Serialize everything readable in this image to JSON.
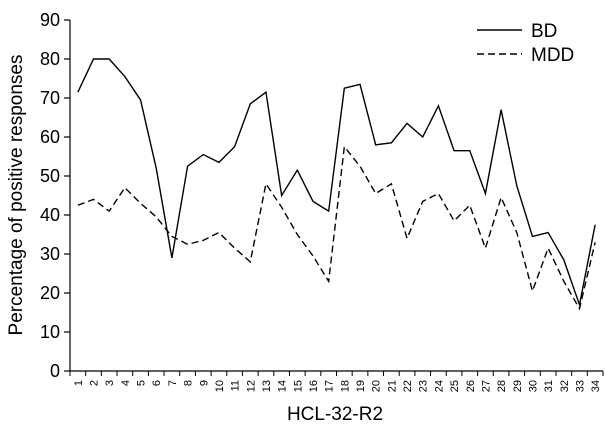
{
  "chart_data": {
    "type": "line",
    "xlabel": "HCL-32-R2",
    "ylabel": "Percentage of positive responses",
    "ylim": [
      0,
      90
    ],
    "yticks": [
      0,
      10,
      20,
      30,
      40,
      50,
      60,
      70,
      80,
      90
    ],
    "categories": [
      "1",
      "2",
      "3",
      "4",
      "5",
      "6",
      "7",
      "8",
      "9",
      "10",
      "11",
      "12",
      "13",
      "14",
      "15",
      "16",
      "17",
      "18",
      "19",
      "20",
      "21",
      "22",
      "23",
      "24",
      "25",
      "26",
      "27",
      "28",
      "29",
      "30",
      "31",
      "32",
      "33",
      "34"
    ],
    "legend_position": "top-right",
    "grid": false,
    "series": [
      {
        "name": "BD",
        "line_style": "solid",
        "color": "#000000",
        "values": [
          71.5,
          80,
          80,
          75.5,
          69.5,
          52,
          29,
          52.5,
          55.5,
          53.5,
          57.5,
          68.5,
          71.5,
          45,
          51.5,
          43.5,
          41,
          72.5,
          73.5,
          58,
          58.5,
          63.5,
          60,
          68,
          56.5,
          56.5,
          45.5,
          67,
          47.5,
          34.5,
          35.5,
          28.5,
          17,
          37.5
        ]
      },
      {
        "name": "MDD",
        "line_style": "dashed",
        "color": "#000000",
        "values": [
          42.5,
          44,
          41,
          47,
          43,
          39.5,
          34.5,
          32.5,
          33.5,
          35.5,
          31.5,
          28,
          48,
          42,
          35,
          29.5,
          23,
          57.5,
          52.5,
          45.5,
          48,
          34,
          43.5,
          45.5,
          38.5,
          42.5,
          31.5,
          44.5,
          35.5,
          20.5,
          31.5,
          23,
          16,
          33
        ]
      }
    ]
  }
}
